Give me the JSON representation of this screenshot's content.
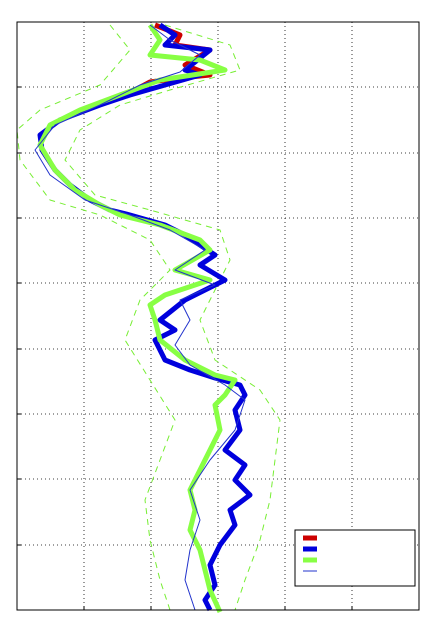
{
  "chart_data": {
    "type": "line",
    "orientation": "vertical",
    "xlim": [
      0,
      402
    ],
    "xticks": [
      0,
      67,
      134,
      201,
      268,
      335,
      402
    ],
    "ylim": [
      0,
      588
    ],
    "yticks": [
      0,
      65,
      131,
      196,
      261,
      327,
      392,
      457,
      523,
      588
    ],
    "y_reversed": true,
    "grid": true,
    "legend": "lower right",
    "series": [
      {
        "color": "#ff9933",
        "width": 1,
        "dash": true,
        "color_override": "#77ee33",
        "values": [
          93,
          113,
          83,
          23,
          0,
          3,
          33,
          83,
          133,
          153,
          123,
          108,
          133,
          158,
          143,
          128,
          133,
          143,
          153
        ],
        "y": [
          3,
          28,
          63,
          88,
          108,
          138,
          178,
          193,
          218,
          248,
          278,
          318,
          358,
          398,
          438,
          478,
          518,
          558,
          588
        ]
      },
      {
        "color": "#77ee33",
        "width": 1,
        "dash": true,
        "values": [
          148,
          213,
          223,
          153,
          103,
          63,
          48,
          78,
          133,
          203,
          213,
          198,
          183,
          198,
          243,
          263,
          258,
          253,
          243,
          228,
          218
        ],
        "y": [
          3,
          23,
          48,
          68,
          83,
          108,
          138,
          173,
          188,
          208,
          238,
          268,
          298,
          338,
          368,
          398,
          438,
          478,
          518,
          558,
          588
        ]
      },
      {
        "color": "#cc0000",
        "width": 5,
        "dash": false,
        "values": [
          138,
          163,
          158,
          193,
          168,
          193,
          163,
          133,
          118
        ],
        "y": [
          3,
          13,
          23,
          28,
          43,
          53,
          56,
          60,
          68
        ]
      },
      {
        "color": "#0000dd",
        "width": 5,
        "dash": false,
        "values": [
          143,
          158,
          148,
          193,
          168,
          183,
          148,
          113,
          83,
          43,
          23,
          25,
          38,
          53,
          73,
          93,
          113,
          148,
          168,
          183,
          198,
          183,
          208,
          168,
          143,
          158,
          138,
          148,
          173,
          198,
          223,
          228,
          218,
          223,
          208,
          228,
          218,
          233,
          213,
          218,
          203,
          193,
          198,
          188,
          193
        ],
        "y": [
          3,
          13,
          23,
          28,
          48,
          53,
          63,
          73,
          83,
          98,
          113,
          128,
          148,
          163,
          178,
          188,
          193,
          203,
          213,
          223,
          233,
          243,
          258,
          278,
          298,
          308,
          318,
          338,
          348,
          356,
          363,
          373,
          388,
          408,
          428,
          443,
          458,
          473,
          488,
          503,
          523,
          543,
          563,
          578,
          588
        ]
      },
      {
        "color": "#88ff44",
        "width": 5,
        "dash": false,
        "values": [
          133,
          143,
          133,
          183,
          208,
          143,
          103,
          63,
          33,
          23,
          38,
          58,
          83,
          103,
          143,
          183,
          193,
          158,
          193,
          148,
          133,
          138,
          143,
          168,
          198,
          218,
          208,
          198,
          203,
          193,
          183,
          173,
          178,
          173,
          183,
          188,
          193,
          203
        ],
        "y": [
          3,
          18,
          33,
          38,
          48,
          58,
          73,
          88,
          103,
          123,
          148,
          168,
          183,
          193,
          203,
          218,
          228,
          248,
          258,
          273,
          283,
          298,
          318,
          338,
          353,
          358,
          373,
          383,
          408,
          428,
          448,
          468,
          488,
          508,
          528,
          548,
          568,
          590
        ]
      },
      {
        "color": "#2233cc",
        "width": 1,
        "dash": false,
        "values": [
          133,
          153,
          183,
          163,
          123,
          83,
          38,
          18,
          33,
          68,
          113,
          153,
          188,
          158,
          198,
          163,
          173,
          158,
          173,
          208,
          228,
          218,
          193,
          173,
          183,
          173,
          168,
          178
        ],
        "y": [
          3,
          18,
          33,
          50,
          63,
          83,
          103,
          128,
          153,
          178,
          193,
          208,
          228,
          248,
          263,
          278,
          298,
          323,
          343,
          363,
          378,
          408,
          438,
          468,
          498,
          528,
          558,
          588
        ]
      }
    ]
  }
}
